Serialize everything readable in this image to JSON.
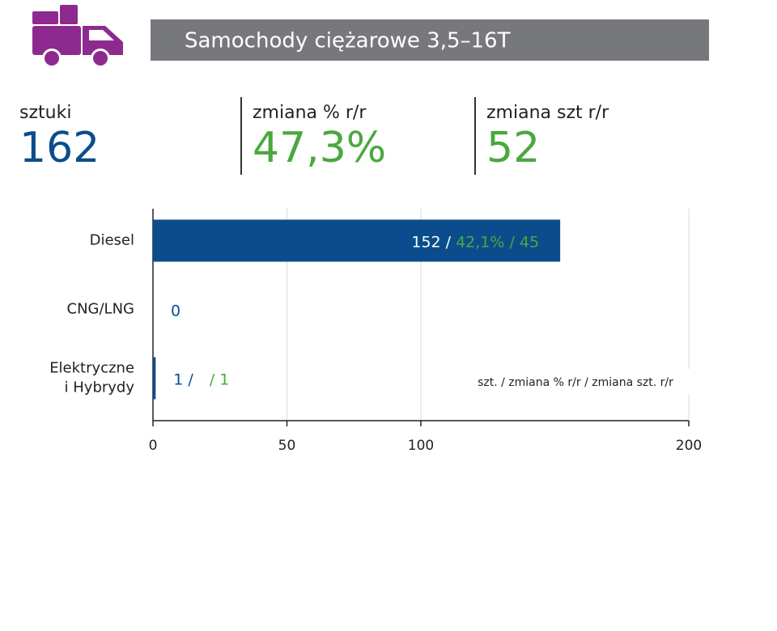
{
  "header": {
    "title": "Samochody ciężarowe 3,5–16T"
  },
  "kpis": [
    {
      "label": "sztuki",
      "value": "162"
    },
    {
      "label": "zmiana % r/r",
      "value": "47,3%"
    },
    {
      "label": "zmiana szt r/r",
      "value": "52"
    }
  ],
  "chart_data": {
    "type": "bar",
    "orientation": "horizontal",
    "categories": [
      [
        "Diesel"
      ],
      [
        "CNG/LNG"
      ],
      [
        "Elektryczne",
        "i Hybrydy"
      ]
    ],
    "values": [
      152,
      0,
      1
    ],
    "value_labels": [
      "152 /",
      "0",
      "1 /"
    ],
    "change_labels": [
      "42,1% / 45",
      null,
      "/ 1"
    ],
    "color": "#0b4d8c",
    "label_color": "#0b4d8c",
    "change_color": "#4aa83e",
    "xlim": [
      0,
      200
    ],
    "xticks": [
      0,
      50,
      100,
      200
    ],
    "grid": true,
    "note": "szt. / zmiana % r/r / zmiana szt. r/r"
  }
}
